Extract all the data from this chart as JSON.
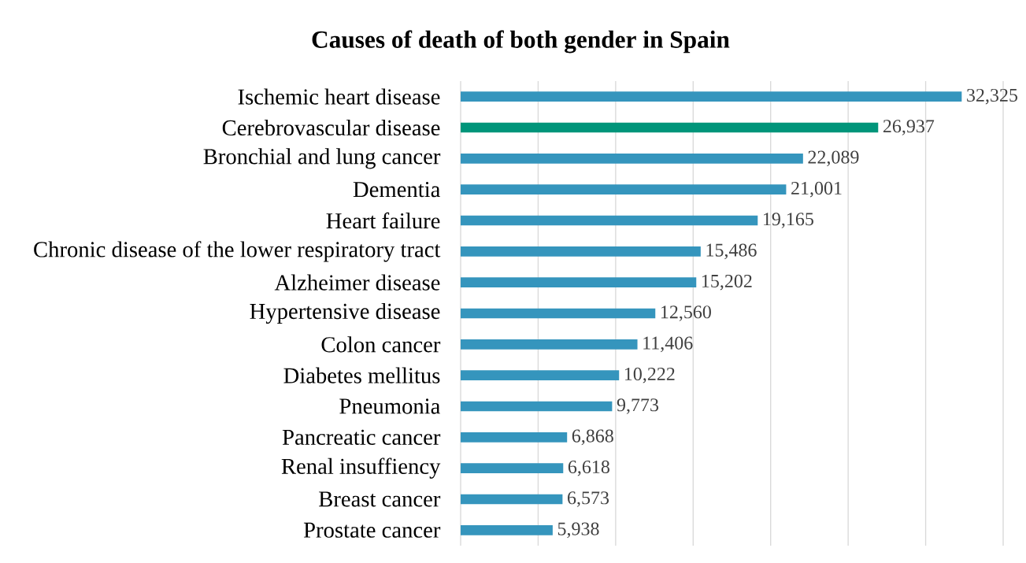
{
  "chart_data": {
    "type": "bar",
    "orientation": "horizontal",
    "title": "Causes of death of both gender in Spain",
    "categories": [
      "Ischemic heart disease",
      "Cerebrovascular disease",
      "Bronchial and lung cancer",
      "Dementia",
      "Heart failure",
      "Chronic disease of the lower respiratory tract",
      "Alzheimer disease",
      "Hypertensive disease",
      "Colon cancer",
      "Diabetes mellitus",
      "Pneumonia",
      "Pancreatic cancer",
      "Renal insuffiency",
      "Breast cancer",
      "Prostate cancer"
    ],
    "values": [
      32325,
      26937,
      22089,
      21001,
      19165,
      15486,
      15202,
      12560,
      11406,
      10222,
      9773,
      6868,
      6618,
      6573,
      5938
    ],
    "value_labels": [
      "32,325",
      "26,937",
      "22,089",
      "21,001",
      "19,165",
      "15,486",
      "15,202",
      "12,560",
      "11,406",
      "10,222",
      "9,773",
      "6,868",
      "6,618",
      "6,573",
      "5,938"
    ],
    "colors": [
      "#3595bd",
      "#00957a",
      "#3595bd",
      "#3595bd",
      "#3595bd",
      "#3595bd",
      "#3595bd",
      "#3595bd",
      "#3595bd",
      "#3595bd",
      "#3595bd",
      "#3595bd",
      "#3595bd",
      "#3595bd",
      "#3595bd"
    ],
    "xlim": [
      0,
      35000
    ],
    "xticks": [
      {
        "value": 0,
        "label": null
      },
      {
        "value": 5000,
        "label": null
      },
      {
        "value": 10000,
        "label": null
      },
      {
        "value": 15000,
        "label": null
      },
      {
        "value": 20000,
        "label": null
      },
      {
        "value": 25000,
        "label": null
      },
      {
        "value": 30000,
        "label": null
      },
      {
        "value": 35000,
        "label": null
      }
    ],
    "tick_labels": "y",
    "grid": "x"
  }
}
